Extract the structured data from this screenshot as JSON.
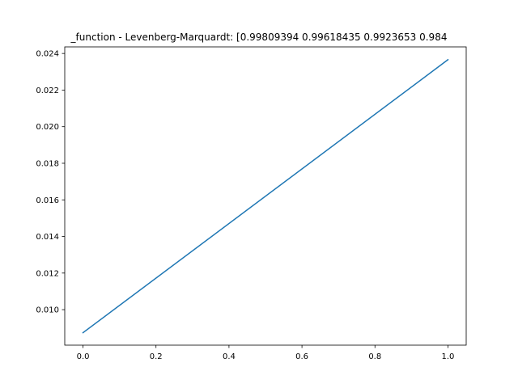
{
  "chart_data": {
    "type": "line",
    "title": "_function - Levenberg-Marquardt: [0.99809394 0.99618435 0.9923653  0.984",
    "xlabel": "",
    "ylabel": "",
    "xlim": [
      -0.05,
      1.05
    ],
    "ylim": [
      0.00806,
      0.02436
    ],
    "xticks": [
      0.0,
      0.2,
      0.4,
      0.6,
      0.8,
      1.0
    ],
    "xtick_labels": [
      "0.0",
      "0.2",
      "0.4",
      "0.6",
      "0.8",
      "1.0"
    ],
    "yticks": [
      0.01,
      0.012,
      0.014,
      0.016,
      0.018,
      0.02,
      0.022,
      0.024
    ],
    "ytick_labels": [
      "0.010",
      "0.012",
      "0.014",
      "0.016",
      "0.018",
      "0.020",
      "0.022",
      "0.024"
    ],
    "grid": false,
    "series": [
      {
        "color": "#1f77b4",
        "x": [
          0.0,
          1.0
        ],
        "y": [
          0.00874,
          0.02366
        ]
      }
    ]
  }
}
